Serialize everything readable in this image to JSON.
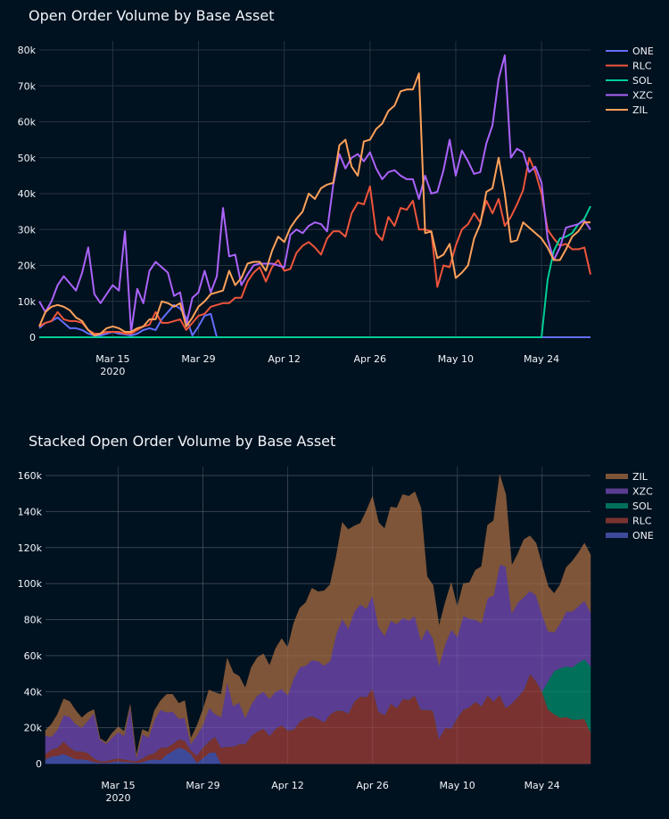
{
  "chart_data": [
    {
      "type": "line",
      "title": "Open Order Volume by Base Asset",
      "xlabel": "",
      "ylabel": "",
      "start_date": "2020-03-03",
      "end_date": "2020-06-01",
      "x_ticks": [
        {
          "date": "2020-03-15",
          "label": "Mar 15",
          "sub": "2020"
        },
        {
          "date": "2020-03-29",
          "label": "Mar 29",
          "sub": ""
        },
        {
          "date": "2020-04-12",
          "label": "Apr 12",
          "sub": ""
        },
        {
          "date": "2020-04-26",
          "label": "Apr 26",
          "sub": ""
        },
        {
          "date": "2020-05-10",
          "label": "May 10",
          "sub": ""
        },
        {
          "date": "2020-05-24",
          "label": "May 24",
          "sub": ""
        }
      ],
      "ylim": [
        0,
        80000
      ],
      "y_ticks": [
        {
          "v": 0,
          "label": "0"
        },
        {
          "v": 10000,
          "label": "10k"
        },
        {
          "v": 20000,
          "label": "20k"
        },
        {
          "v": 30000,
          "label": "30k"
        },
        {
          "v": 40000,
          "label": "40k"
        },
        {
          "v": 50000,
          "label": "50k"
        },
        {
          "v": 60000,
          "label": "60k"
        },
        {
          "v": 70000,
          "label": "70k"
        },
        {
          "v": 80000,
          "label": "80k"
        }
      ],
      "grid": true,
      "legend_position": "top-right",
      "series": [
        {
          "name": "ONE",
          "color": "#636efa",
          "values": [
            2500,
            4000,
            4500,
            5500,
            4000,
            2500,
            2500,
            2000,
            1000,
            500,
            500,
            1000,
            1500,
            1000,
            800,
            500,
            1000,
            2000,
            2500,
            2000,
            5000,
            7000,
            9000,
            8000,
            5500,
            500,
            3000,
            6000,
            6500,
            0,
            0,
            0,
            0,
            0,
            0,
            0,
            0,
            0,
            0,
            0,
            0,
            0,
            0,
            0,
            0,
            0,
            0,
            0,
            0,
            0,
            0,
            0,
            0,
            0,
            0,
            0,
            0,
            0,
            0,
            0,
            0,
            0,
            0,
            0,
            0,
            0,
            0,
            0,
            0,
            0,
            0,
            0,
            0,
            0,
            0,
            0,
            0,
            0,
            0,
            0,
            0,
            0,
            0,
            0,
            0,
            0,
            0,
            0,
            0,
            0,
            0
          ]
        },
        {
          "name": "RLC",
          "color": "#ef553b",
          "values": [
            3000,
            4000,
            4500,
            7000,
            5000,
            4500,
            4500,
            4000,
            2000,
            1000,
            1000,
            1500,
            1500,
            1500,
            1000,
            1000,
            2000,
            3000,
            3500,
            7000,
            4000,
            4000,
            4500,
            5000,
            2000,
            4000,
            6000,
            6500,
            8500,
            9000,
            9500,
            9500,
            11000,
            11000,
            15500,
            18000,
            19500,
            15500,
            19500,
            21500,
            18500,
            19000,
            23500,
            25500,
            26500,
            25000,
            23000,
            27500,
            29500,
            29500,
            28000,
            34500,
            37500,
            37000,
            42000,
            29000,
            27000,
            33500,
            31000,
            36000,
            35500,
            38000,
            30000,
            30000,
            29500,
            14000,
            20000,
            19500,
            25500,
            30000,
            31500,
            34500,
            32000,
            38000,
            34500,
            38500,
            31000,
            33500,
            37000,
            41000,
            50000,
            46000,
            40000,
            30000,
            27500,
            25500,
            26000,
            24500,
            24500,
            25000,
            17500
          ]
        },
        {
          "name": "SOL",
          "color": "#00cc96",
          "values": [
            0,
            0,
            0,
            0,
            0,
            0,
            0,
            0,
            0,
            0,
            0,
            0,
            0,
            0,
            0,
            0,
            0,
            0,
            0,
            0,
            0,
            0,
            0,
            0,
            0,
            0,
            0,
            0,
            0,
            0,
            0,
            0,
            0,
            0,
            0,
            0,
            0,
            0,
            0,
            0,
            0,
            0,
            0,
            0,
            0,
            0,
            0,
            0,
            0,
            0,
            0,
            0,
            0,
            0,
            0,
            0,
            0,
            0,
            0,
            0,
            0,
            0,
            0,
            0,
            0,
            0,
            0,
            0,
            0,
            0,
            0,
            0,
            0,
            0,
            0,
            0,
            0,
            0,
            0,
            0,
            0,
            0,
            0,
            16000,
            24000,
            27500,
            28000,
            29000,
            31500,
            33000,
            36500
          ]
        },
        {
          "name": "XZC",
          "color": "#ab63fa",
          "values": [
            10000,
            7000,
            10000,
            14500,
            17000,
            15000,
            13000,
            18000,
            25000,
            12000,
            9500,
            12000,
            14500,
            13000,
            29500,
            1500,
            13500,
            9500,
            18500,
            21000,
            19500,
            18000,
            11500,
            12500,
            3500,
            11000,
            12500,
            18500,
            12500,
            17000,
            36000,
            22500,
            23000,
            14500,
            17500,
            20000,
            20500,
            20500,
            20500,
            20000,
            19500,
            28500,
            30000,
            29000,
            31000,
            32000,
            31500,
            29500,
            42500,
            51000,
            47000,
            50000,
            51000,
            49000,
            51500,
            47000,
            44000,
            46000,
            46500,
            45000,
            44000,
            44000,
            38500,
            45000,
            40000,
            40500,
            46500,
            55000,
            45000,
            52000,
            49000,
            45500,
            46000,
            54000,
            59000,
            72000,
            78500,
            50000,
            52500,
            51500,
            46000,
            47500,
            43000,
            27500,
            21500,
            25000,
            30500,
            31000,
            31500,
            32500,
            30000
          ]
        },
        {
          "name": "ZIL",
          "color": "#ffa15a",
          "values": [
            3000,
            7000,
            8500,
            9000,
            8500,
            7500,
            5500,
            4500,
            2000,
            500,
            1000,
            2500,
            3000,
            2500,
            1500,
            1500,
            2500,
            3000,
            5000,
            5000,
            10000,
            9500,
            8500,
            9500,
            3000,
            5500,
            8500,
            10000,
            12000,
            12500,
            13000,
            18500,
            14500,
            16500,
            20500,
            21000,
            21000,
            18500,
            24000,
            28000,
            26500,
            30500,
            33000,
            35000,
            40000,
            38500,
            41500,
            42500,
            43000,
            53500,
            55000,
            47500,
            45000,
            54500,
            55000,
            58000,
            59500,
            63000,
            64500,
            68500,
            69000,
            69000,
            73500,
            29000,
            29500,
            22000,
            23000,
            26000,
            16500,
            18000,
            20000,
            27500,
            31500,
            40500,
            41500,
            50000,
            40000,
            26500,
            27000,
            32000,
            30500,
            29000,
            27500,
            25000,
            21500,
            21500,
            24500,
            28000,
            29500,
            32000,
            32000
          ]
        }
      ]
    },
    {
      "type": "area",
      "stacked": true,
      "title": "Stacked Open Order Volume by Base Asset",
      "xlabel": "",
      "ylabel": "",
      "start_date": "2020-03-03",
      "end_date": "2020-06-01",
      "x_ticks": [
        {
          "date": "2020-03-15",
          "label": "Mar 15",
          "sub": "2020"
        },
        {
          "date": "2020-03-29",
          "label": "Mar 29",
          "sub": ""
        },
        {
          "date": "2020-04-12",
          "label": "Apr 12",
          "sub": ""
        },
        {
          "date": "2020-04-26",
          "label": "Apr 26",
          "sub": ""
        },
        {
          "date": "2020-05-10",
          "label": "May 10",
          "sub": ""
        },
        {
          "date": "2020-05-24",
          "label": "May 24",
          "sub": ""
        }
      ],
      "ylim": [
        0,
        160000
      ],
      "y_ticks": [
        {
          "v": 0,
          "label": "0"
        },
        {
          "v": 20000,
          "label": "20k"
        },
        {
          "v": 40000,
          "label": "40k"
        },
        {
          "v": 60000,
          "label": "60k"
        },
        {
          "v": 80000,
          "label": "80k"
        },
        {
          "v": 100000,
          "label": "100k"
        },
        {
          "v": 120000,
          "label": "120k"
        },
        {
          "v": 140000,
          "label": "140k"
        },
        {
          "v": 160000,
          "label": "160k"
        }
      ],
      "grid": true,
      "legend_position": "top-right",
      "stack_order": [
        "ONE",
        "RLC",
        "SOL",
        "XZC",
        "ZIL"
      ],
      "legend_order": [
        "ZIL",
        "XZC",
        "SOL",
        "RLC",
        "ONE"
      ],
      "colors": {
        "ONE": "#3d4a9a",
        "RLC": "#7a3230",
        "SOL": "#00705a",
        "XZC": "#5a3d92",
        "ZIL": "#7e5538"
      }
    }
  ]
}
